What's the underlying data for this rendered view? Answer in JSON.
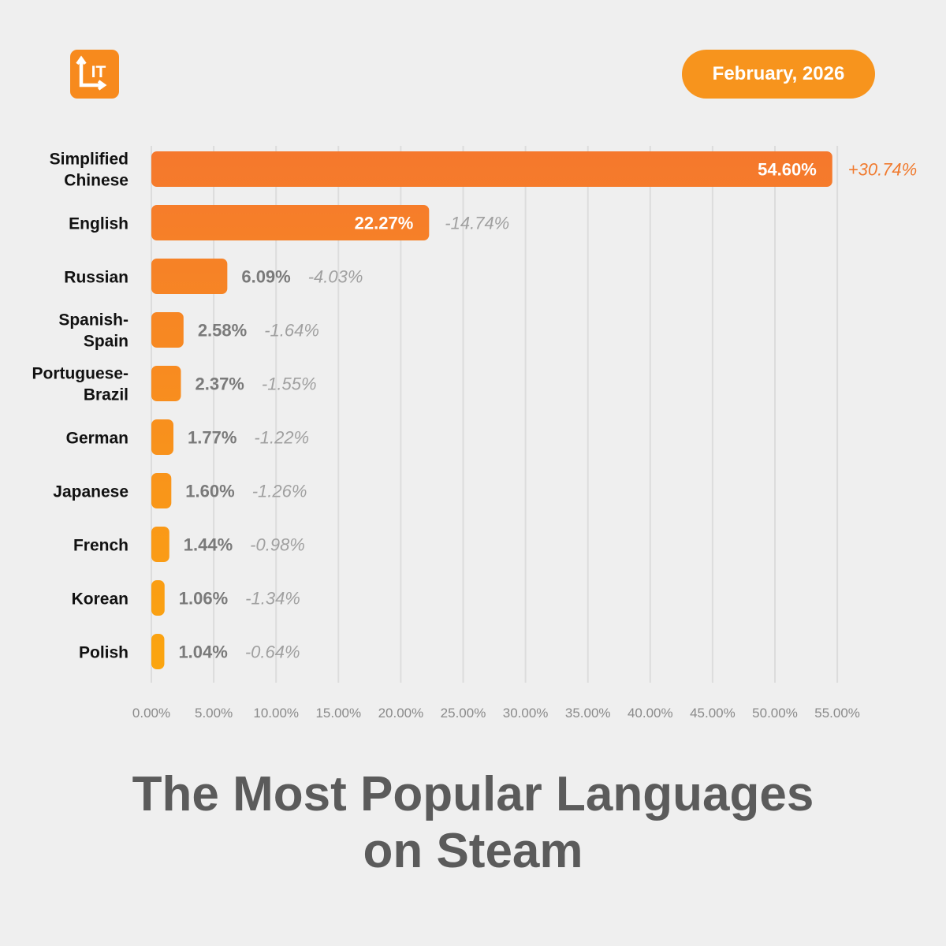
{
  "header": {
    "logo_text": "IT",
    "date": "February, 2026"
  },
  "title_lines": [
    "The Most Popular Languages",
    "on Steam"
  ],
  "colors": {
    "background": "#efefef",
    "accent": "#f7941d",
    "bar_top": "#f5782d",
    "bar_bottom": "#fba50f",
    "positive_change": "#f07a2e",
    "negative_change": "#a0a0a0",
    "value_label_dark": "#7a7a7a",
    "category_label": "#111111",
    "title": "#5b5b5b"
  },
  "chart_data": {
    "type": "bar",
    "orientation": "horizontal",
    "categories": [
      [
        "Simplified",
        "Chinese"
      ],
      [
        "English"
      ],
      [
        "Russian"
      ],
      [
        "Spanish-",
        "Spain"
      ],
      [
        "Portuguese-",
        "Brazil"
      ],
      [
        "German"
      ],
      [
        "Japanese"
      ],
      [
        "French"
      ],
      [
        "Korean"
      ],
      [
        "Polish"
      ]
    ],
    "values": [
      54.6,
      22.27,
      6.09,
      2.58,
      2.37,
      1.77,
      1.6,
      1.44,
      1.06,
      1.04
    ],
    "value_labels": [
      "54.60%",
      "22.27%",
      "6.09%",
      "2.58%",
      "2.37%",
      "1.77%",
      "1.60%",
      "1.44%",
      "1.06%",
      "1.04%"
    ],
    "change_labels": [
      "+30.74%",
      "-14.74%",
      "-4.03%",
      "-1.64%",
      "-1.55%",
      "-1.22%",
      "-1.26%",
      "-0.98%",
      "-1.34%",
      "-0.64%"
    ],
    "xlim": [
      0,
      55
    ],
    "xticks": [
      "0.00%",
      "5.00%",
      "10.00%",
      "15.00%",
      "20.00%",
      "25.00%",
      "30.00%",
      "35.00%",
      "40.00%",
      "45.00%",
      "50.00%",
      "55.00%"
    ],
    "grid": true
  }
}
